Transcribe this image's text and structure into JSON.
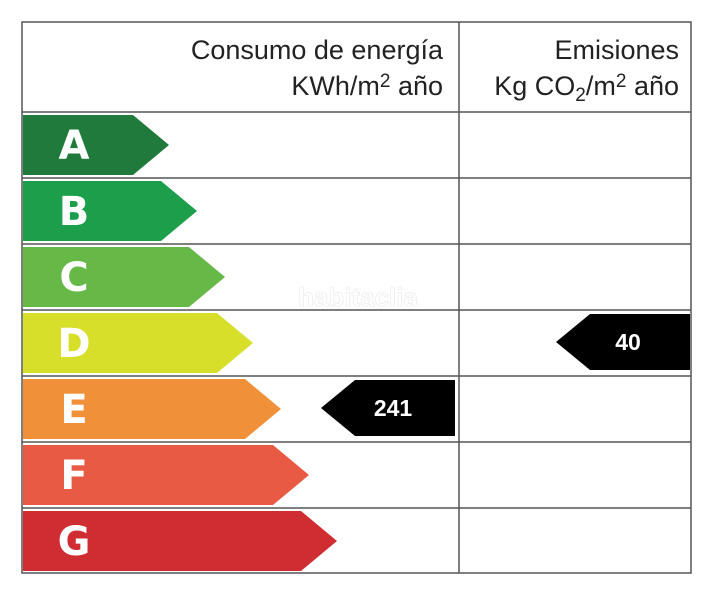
{
  "header": {
    "energy": {
      "line1": "Consumo de energía",
      "line2_main": "KWh/m",
      "line2_sup": "2",
      "line2_tail": " año"
    },
    "emissions": {
      "line1": "Emisiones",
      "line2_a": "Kg CO",
      "line2_sub": "2",
      "line2_b": "/m",
      "line2_sup": "2",
      "line2_tail": " año"
    }
  },
  "watermark": "habitaclia",
  "chart_data": {
    "type": "bar",
    "categories": [
      "A",
      "B",
      "C",
      "D",
      "E",
      "F",
      "G"
    ],
    "colors": [
      "#1f7a3c",
      "#1c9e4b",
      "#66b847",
      "#d7df2b",
      "#f0913a",
      "#e85a44",
      "#cf2d32"
    ],
    "energy": {
      "rating": "E",
      "value": "241"
    },
    "emissions": {
      "rating": "D",
      "value": "40"
    }
  }
}
